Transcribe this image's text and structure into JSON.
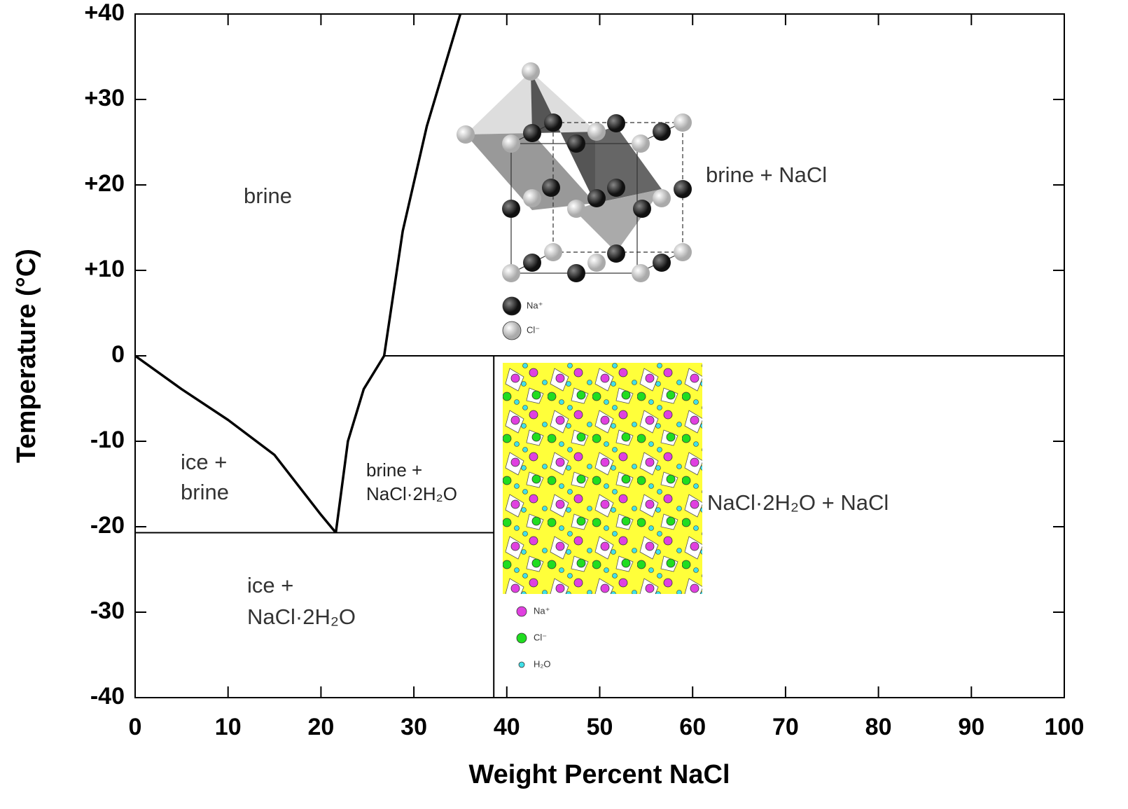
{
  "chart_data": {
    "type": "line",
    "xlabel": "Weight Percent NaCl",
    "ylabel": "Temperature (°C)",
    "xlim": [
      0,
      100
    ],
    "xticks": [
      0,
      10,
      20,
      30,
      40,
      50,
      60,
      70,
      80,
      90,
      100
    ],
    "ylim": [
      -40,
      40
    ],
    "yticks": [
      -40,
      -30,
      -20,
      -10,
      0,
      {
        "value": 10,
        "label": "+10"
      },
      {
        "value": 20,
        "label": "+20"
      },
      {
        "value": 30,
        "label": "+30"
      },
      {
        "value": 40,
        "label": "+40"
      }
    ],
    "series": [
      {
        "color": "#000000",
        "x": [
          0,
          5,
          10,
          15,
          20,
          21.6
        ],
        "y": [
          0,
          -3.9,
          -7.5,
          -11.6,
          -18.6,
          -20.7
        ]
      },
      {
        "color": "#000000",
        "x": [
          21.6,
          22.9,
          24.6,
          26.8,
          28.8,
          31.4,
          35
        ],
        "y": [
          -20.7,
          -10,
          -3.9,
          0,
          14.6,
          26.9,
          40
        ]
      },
      {
        "color": "#000000",
        "x": [
          26.8,
          100
        ],
        "y": [
          0,
          0
        ]
      },
      {
        "color": "#000000",
        "x": [
          0,
          38.6
        ],
        "y": [
          -20.7,
          -20.7
        ]
      },
      {
        "color": "#000000",
        "x": [
          38.6,
          38.6
        ],
        "y": [
          -40,
          0
        ]
      }
    ],
    "annotations": [
      "brine",
      "brine + NaCl",
      "ice +",
      "brine",
      "brine +",
      "NaCl·2H₂O",
      "NaCl·2H₂O + NaCl",
      "ice +",
      "NaCl·2H₂O"
    ],
    "insets": [
      {
        "legend": [
          "Na⁺",
          "Cl⁻"
        ]
      },
      {
        "legend": [
          "Na⁺",
          "Cl⁻",
          "H₂O"
        ]
      }
    ]
  }
}
